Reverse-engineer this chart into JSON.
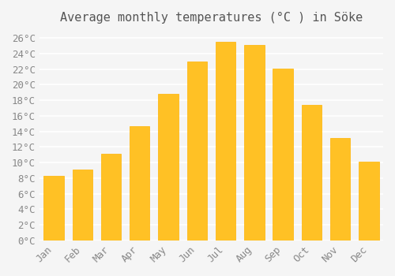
{
  "title": "Average monthly temperatures (°C ) in Söke",
  "months": [
    "Jan",
    "Feb",
    "Mar",
    "Apr",
    "May",
    "Jun",
    "Jul",
    "Aug",
    "Sep",
    "Oct",
    "Nov",
    "Dec"
  ],
  "values": [
    8.3,
    9.1,
    11.1,
    14.7,
    18.8,
    23.0,
    25.5,
    25.1,
    22.1,
    17.4,
    13.2,
    10.1
  ],
  "bar_color": "#FFC125",
  "bar_edge_color": "#FFB300",
  "background_color": "#F5F5F5",
  "grid_color": "#FFFFFF",
  "ylim": [
    0,
    27
  ],
  "ytick_step": 2,
  "title_fontsize": 11,
  "tick_fontsize": 9,
  "font_family": "monospace"
}
